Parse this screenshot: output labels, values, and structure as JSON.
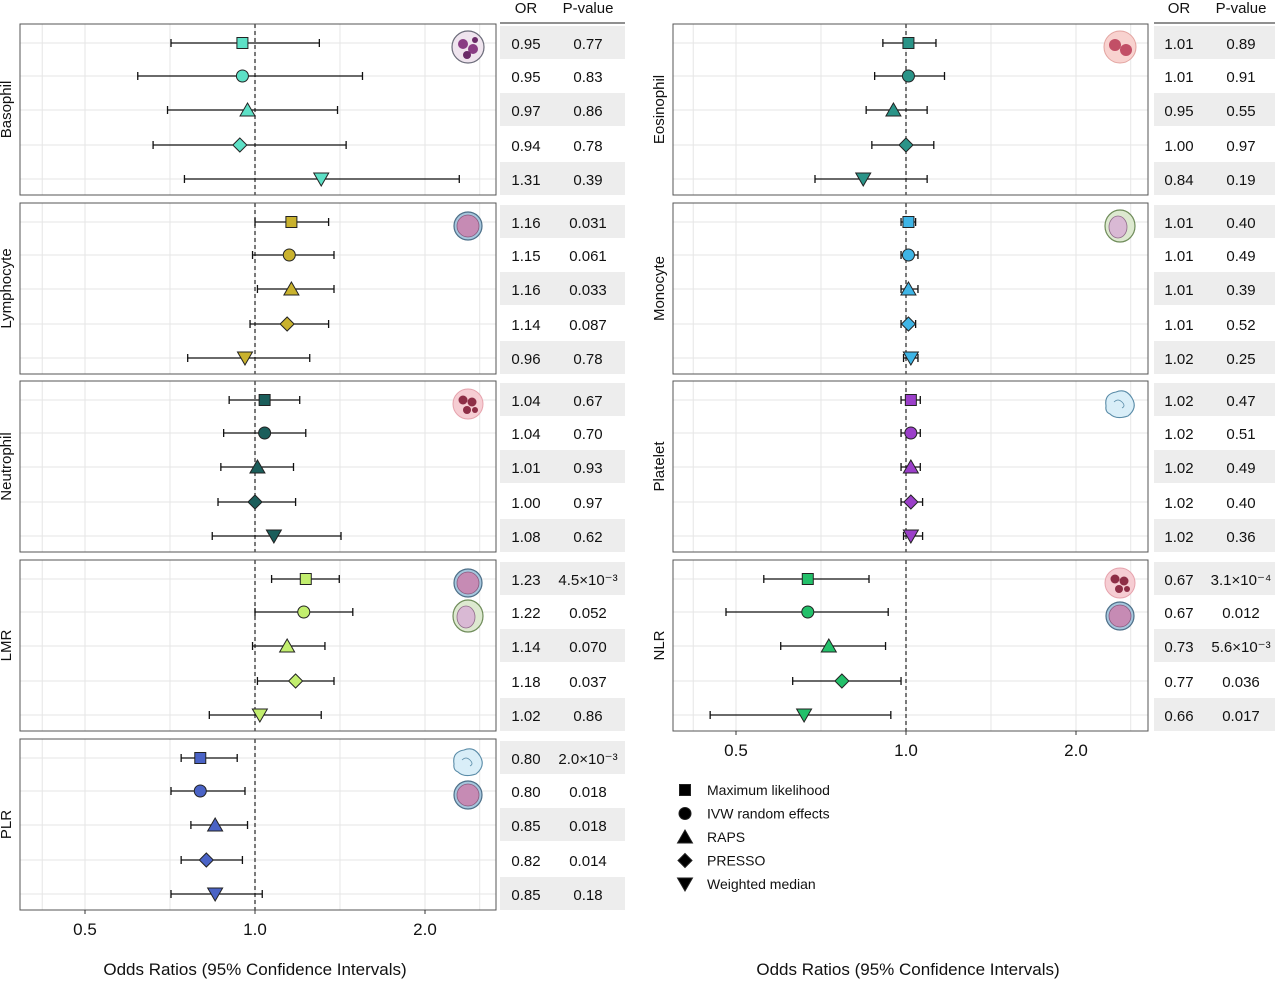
{
  "chart_data": {
    "type": "forest",
    "x_scale": "log",
    "grid": true,
    "reference_line": 1.0,
    "legend_placement": "bottom-right",
    "methods": [
      "Maximum likelihood",
      "IVW random effects",
      "RAPS",
      "PRESSO",
      "Weighted median"
    ],
    "markers": [
      "square",
      "circle",
      "triangle-up",
      "diamond",
      "triangle-down"
    ],
    "table_headers": [
      "OR",
      "P-value"
    ],
    "columns": [
      {
        "xlabel": "Odds Ratios (95% Confidence Intervals)",
        "xlim": [
          0.4,
          2.8
        ],
        "xticks": [
          0.5,
          1.0,
          2.0
        ],
        "xtick_labels": [
          "0.5",
          "1.0",
          "2.0"
        ],
        "panels": [
          {
            "label": "Basophil",
            "color": "#5de0c6",
            "icons": [
              "basophil-icon"
            ],
            "rows": [
              {
                "or": 0.95,
                "lo": 0.71,
                "hi": 1.3,
                "or_label": "0.95",
                "p_label": "0.77"
              },
              {
                "or": 0.95,
                "lo": 0.62,
                "hi": 1.55,
                "or_label": "0.95",
                "p_label": "0.83"
              },
              {
                "or": 0.97,
                "lo": 0.7,
                "hi": 1.4,
                "or_label": "0.97",
                "p_label": "0.86"
              },
              {
                "or": 0.94,
                "lo": 0.66,
                "hi": 1.45,
                "or_label": "0.94",
                "p_label": "0.78"
              },
              {
                "or": 1.31,
                "lo": 0.75,
                "hi": 2.3,
                "or_label": "1.31",
                "p_label": "0.39"
              }
            ]
          },
          {
            "label": "Lymphocyte",
            "color": "#c9b22e",
            "icons": [
              "lymphocyte-icon"
            ],
            "rows": [
              {
                "or": 1.16,
                "lo": 1.0,
                "hi": 1.35,
                "or_label": "1.16",
                "p_label": "0.031"
              },
              {
                "or": 1.15,
                "lo": 0.99,
                "hi": 1.38,
                "or_label": "1.15",
                "p_label": "0.061"
              },
              {
                "or": 1.16,
                "lo": 1.01,
                "hi": 1.38,
                "or_label": "1.16",
                "p_label": "0.033"
              },
              {
                "or": 1.14,
                "lo": 0.98,
                "hi": 1.35,
                "or_label": "1.14",
                "p_label": "0.087"
              },
              {
                "or": 0.96,
                "lo": 0.76,
                "hi": 1.25,
                "or_label": "0.96",
                "p_label": "0.78"
              }
            ]
          },
          {
            "label": "Neutrophil",
            "color": "#1b5e5b",
            "icons": [
              "neutrophil-icon"
            ],
            "rows": [
              {
                "or": 1.04,
                "lo": 0.9,
                "hi": 1.2,
                "or_label": "1.04",
                "p_label": "0.67"
              },
              {
                "or": 1.04,
                "lo": 0.88,
                "hi": 1.23,
                "or_label": "1.04",
                "p_label": "0.70"
              },
              {
                "or": 1.01,
                "lo": 0.87,
                "hi": 1.17,
                "or_label": "1.01",
                "p_label": "0.93"
              },
              {
                "or": 1.0,
                "lo": 0.86,
                "hi": 1.18,
                "or_label": "1.00",
                "p_label": "0.97"
              },
              {
                "or": 1.08,
                "lo": 0.84,
                "hi": 1.42,
                "or_label": "1.08",
                "p_label": "0.62"
              }
            ]
          },
          {
            "label": "LMR",
            "color": "#c2ee6e",
            "icons": [
              "lymphocyte-icon",
              "monocyte-icon"
            ],
            "rows": [
              {
                "or": 1.23,
                "lo": 1.07,
                "hi": 1.41,
                "or_label": "1.23",
                "p_label": "4.5×10⁻³"
              },
              {
                "or": 1.22,
                "lo": 1.0,
                "hi": 1.49,
                "or_label": "1.22",
                "p_label": "0.052"
              },
              {
                "or": 1.14,
                "lo": 0.99,
                "hi": 1.33,
                "or_label": "1.14",
                "p_label": "0.070"
              },
              {
                "or": 1.18,
                "lo": 1.01,
                "hi": 1.38,
                "or_label": "1.18",
                "p_label": "0.037"
              },
              {
                "or": 1.02,
                "lo": 0.83,
                "hi": 1.31,
                "or_label": "1.02",
                "p_label": "0.86"
              }
            ]
          },
          {
            "label": "PLR",
            "color": "#4a63c6",
            "icons": [
              "platelet-icon",
              "lymphocyte-icon"
            ],
            "rows": [
              {
                "or": 0.8,
                "lo": 0.74,
                "hi": 0.93,
                "or_label": "0.80",
                "p_label": "2.0×10⁻³"
              },
              {
                "or": 0.8,
                "lo": 0.71,
                "hi": 0.96,
                "or_label": "0.80",
                "p_label": "0.018"
              },
              {
                "or": 0.85,
                "lo": 0.77,
                "hi": 0.97,
                "or_label": "0.85",
                "p_label": "0.018"
              },
              {
                "or": 0.82,
                "lo": 0.74,
                "hi": 0.95,
                "or_label": "0.82",
                "p_label": "0.014"
              },
              {
                "or": 0.85,
                "lo": 0.71,
                "hi": 1.03,
                "or_label": "0.85",
                "p_label": "0.18"
              }
            ]
          }
        ]
      },
      {
        "xlabel": "Odds Ratios (95% Confidence Intervals)",
        "xlim": [
          0.4,
          2.8
        ],
        "xticks": [
          0.5,
          1.0,
          2.0
        ],
        "xtick_labels": [
          "0.5",
          "1.0",
          "2.0"
        ],
        "panels": [
          {
            "label": "Eosinophil",
            "color": "#2a9488",
            "icons": [
              "eosinophil-icon"
            ],
            "rows": [
              {
                "or": 1.01,
                "lo": 0.91,
                "hi": 1.13,
                "or_label": "1.01",
                "p_label": "0.89"
              },
              {
                "or": 1.01,
                "lo": 0.88,
                "hi": 1.17,
                "or_label": "1.01",
                "p_label": "0.91"
              },
              {
                "or": 0.95,
                "lo": 0.85,
                "hi": 1.09,
                "or_label": "0.95",
                "p_label": "0.55"
              },
              {
                "or": 1.0,
                "lo": 0.87,
                "hi": 1.12,
                "or_label": "1.00",
                "p_label": "0.97"
              },
              {
                "or": 0.84,
                "lo": 0.69,
                "hi": 1.09,
                "or_label": "0.84",
                "p_label": "0.19"
              }
            ]
          },
          {
            "label": "Monocyte",
            "color": "#3fb5e6",
            "icons": [
              "monocyte-icon"
            ],
            "rows": [
              {
                "or": 1.01,
                "lo": 0.98,
                "hi": 1.04,
                "or_label": "1.01",
                "p_label": "0.40"
              },
              {
                "or": 1.01,
                "lo": 0.98,
                "hi": 1.05,
                "or_label": "1.01",
                "p_label": "0.49"
              },
              {
                "or": 1.01,
                "lo": 0.98,
                "hi": 1.05,
                "or_label": "1.01",
                "p_label": "0.39"
              },
              {
                "or": 1.01,
                "lo": 0.98,
                "hi": 1.04,
                "or_label": "1.01",
                "p_label": "0.52"
              },
              {
                "or": 1.02,
                "lo": 0.99,
                "hi": 1.05,
                "or_label": "1.02",
                "p_label": "0.25"
              }
            ]
          },
          {
            "label": "Platelet",
            "color": "#9b3fc9",
            "icons": [
              "platelet-icon"
            ],
            "rows": [
              {
                "or": 1.02,
                "lo": 0.98,
                "hi": 1.06,
                "or_label": "1.02",
                "p_label": "0.47"
              },
              {
                "or": 1.02,
                "lo": 0.98,
                "hi": 1.06,
                "or_label": "1.02",
                "p_label": "0.51"
              },
              {
                "or": 1.02,
                "lo": 0.98,
                "hi": 1.06,
                "or_label": "1.02",
                "p_label": "0.49"
              },
              {
                "or": 1.02,
                "lo": 0.98,
                "hi": 1.07,
                "or_label": "1.02",
                "p_label": "0.40"
              },
              {
                "or": 1.02,
                "lo": 0.99,
                "hi": 1.07,
                "or_label": "1.02",
                "p_label": "0.36"
              }
            ]
          },
          {
            "label": "NLR",
            "color": "#23c06a",
            "icons": [
              "neutrophil-icon",
              "lymphocyte-icon"
            ],
            "rows": [
              {
                "or": 0.67,
                "lo": 0.56,
                "hi": 0.86,
                "or_label": "0.67",
                "p_label": "3.1×10⁻⁴"
              },
              {
                "or": 0.67,
                "lo": 0.48,
                "hi": 0.93,
                "or_label": "0.67",
                "p_label": "0.012"
              },
              {
                "or": 0.73,
                "lo": 0.6,
                "hi": 0.92,
                "or_label": "0.73",
                "p_label": "5.6×10⁻³"
              },
              {
                "or": 0.77,
                "lo": 0.63,
                "hi": 0.98,
                "or_label": "0.77",
                "p_label": "0.036"
              },
              {
                "or": 0.66,
                "lo": 0.45,
                "hi": 0.94,
                "or_label": "0.66",
                "p_label": "0.017"
              }
            ]
          }
        ]
      }
    ]
  }
}
